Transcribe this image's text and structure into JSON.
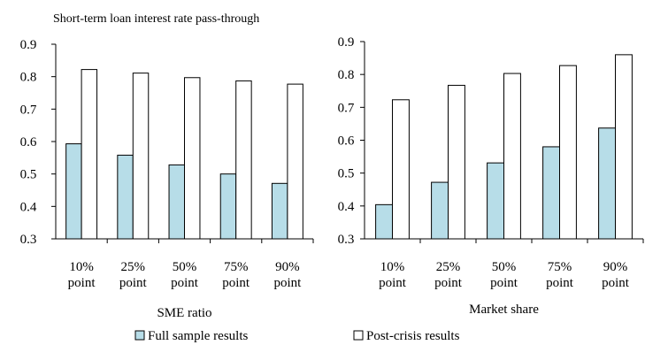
{
  "figure": {
    "title": "Short-term loan interest rate pass-through"
  },
  "colors": {
    "full_sample": "#b7dde8",
    "post_crisis": "#ffffff",
    "stroke": "#000000"
  },
  "legend": {
    "placement": "bottom-center",
    "items": [
      "Full sample results",
      "Post-crisis results"
    ]
  },
  "chart_data": [
    {
      "type": "bar",
      "title": "Short-term loan interest rate pass-through",
      "xlabel": "SME ratio",
      "ylabel": "",
      "ylim": [
        0.3,
        0.9
      ],
      "yticks": [
        "0.3",
        "0.4",
        "0.5",
        "0.6",
        "0.7",
        "0.8",
        "0.9"
      ],
      "grid": false,
      "categories": [
        [
          "10%",
          "point"
        ],
        [
          "25%",
          "point"
        ],
        [
          "50%",
          "point"
        ],
        [
          "75%",
          "point"
        ],
        [
          "90%",
          "point"
        ]
      ],
      "series": [
        {
          "name": "Full sample results",
          "values": [
            0.593,
            0.558,
            0.528,
            0.5,
            0.471
          ]
        },
        {
          "name": "Post-crisis results",
          "values": [
            0.822,
            0.811,
            0.797,
            0.787,
            0.777
          ]
        }
      ]
    },
    {
      "type": "bar",
      "title": "",
      "xlabel": "Market share",
      "ylabel": "",
      "ylim": [
        0.3,
        0.9
      ],
      "yticks": [
        "0.3",
        "0.4",
        "0.5",
        "0.6",
        "0.7",
        "0.8",
        "0.9"
      ],
      "grid": false,
      "categories": [
        [
          "10%",
          "point"
        ],
        [
          "25%",
          "point"
        ],
        [
          "50%",
          "point"
        ],
        [
          "75%",
          "point"
        ],
        [
          "90%",
          "point"
        ]
      ],
      "series": [
        {
          "name": "Full sample results",
          "values": [
            0.404,
            0.472,
            0.531,
            0.58,
            0.637
          ]
        },
        {
          "name": "Post-crisis results",
          "values": [
            0.723,
            0.767,
            0.803,
            0.827,
            0.86
          ]
        }
      ]
    }
  ]
}
